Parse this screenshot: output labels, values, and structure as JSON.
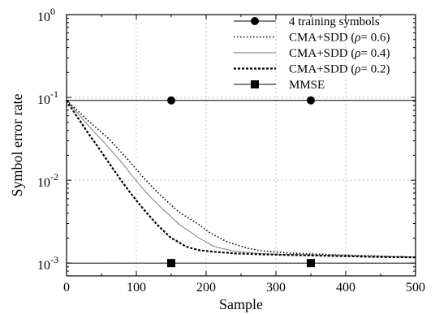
{
  "chart_data": {
    "type": "line",
    "title": "",
    "xlabel": "Sample",
    "ylabel": "Symbol error rate",
    "xlim": [
      0,
      500
    ],
    "ylim": [
      0.0007,
      1
    ],
    "yscale": "log",
    "x_ticks": [
      0,
      100,
      200,
      300,
      400,
      500
    ],
    "x_tick_labels": [
      "0",
      "100",
      "200",
      "300",
      "400",
      "500"
    ],
    "y_ticks": [
      1,
      0.1,
      0.01,
      0.001
    ],
    "y_tick_labels": [
      {
        "base": "10",
        "exp": "0"
      },
      {
        "base": "10",
        "exp": "-1"
      },
      {
        "base": "10",
        "exp": "-2"
      },
      {
        "base": "10",
        "exp": "-3"
      }
    ],
    "grid": true,
    "legend_position": "top-right",
    "series": [
      {
        "name": "4 training symbols",
        "style": "solid-circle",
        "color": "#000000",
        "x": [
          0,
          500
        ],
        "y": [
          0.092,
          0.092
        ],
        "marker_x": [
          150,
          350
        ]
      },
      {
        "name_prefix": "CMA+SDD (",
        "name_symbol": "ρ",
        "name_suffix": "= 0.6)",
        "style": "dotted",
        "color": "#000000",
        "x": [
          0,
          10,
          20,
          30,
          40,
          50,
          60,
          70,
          80,
          90,
          100,
          110,
          120,
          130,
          140,
          150,
          160,
          170,
          180,
          190,
          200,
          210,
          220,
          230,
          240,
          250,
          260,
          270,
          280,
          290,
          300,
          320,
          340,
          360,
          380,
          400,
          420,
          440,
          460,
          480,
          500
        ],
        "y": [
          0.092,
          0.077,
          0.064,
          0.053,
          0.045,
          0.038,
          0.032,
          0.026,
          0.021,
          0.017,
          0.0135,
          0.0108,
          0.0088,
          0.0072,
          0.006,
          0.005,
          0.0042,
          0.0037,
          0.0033,
          0.0029,
          0.0025,
          0.0022,
          0.002,
          0.0018,
          0.0017,
          0.0016,
          0.0015,
          0.00145,
          0.0014,
          0.00138,
          0.00136,
          0.00132,
          0.0013,
          0.00128,
          0.00126,
          0.00125,
          0.00123,
          0.00122,
          0.0012,
          0.00119,
          0.00118
        ]
      },
      {
        "name_prefix": "CMA+SDD (",
        "name_symbol": "ρ",
        "name_suffix": "= 0.4)",
        "style": "thin",
        "color": "#707070",
        "x": [
          0,
          10,
          20,
          30,
          40,
          50,
          60,
          70,
          80,
          90,
          100,
          110,
          120,
          130,
          140,
          150,
          160,
          170,
          180,
          190,
          200,
          210,
          220,
          230,
          240,
          250,
          260,
          270,
          280,
          290,
          300,
          320,
          340,
          360,
          380,
          400,
          420,
          440,
          460,
          480,
          500
        ],
        "y": [
          0.092,
          0.074,
          0.059,
          0.047,
          0.038,
          0.031,
          0.025,
          0.02,
          0.016,
          0.0125,
          0.0098,
          0.0078,
          0.0063,
          0.0052,
          0.0043,
          0.0036,
          0.003,
          0.0026,
          0.0023,
          0.002,
          0.0018,
          0.0016,
          0.00152,
          0.00145,
          0.0014,
          0.00137,
          0.00134,
          0.00132,
          0.0013,
          0.00129,
          0.00128,
          0.00127,
          0.00126,
          0.00125,
          0.00124,
          0.00123,
          0.00122,
          0.00121,
          0.0012,
          0.00119,
          0.00118
        ]
      },
      {
        "name_prefix": "CMA+SDD (",
        "name_symbol": "ρ",
        "name_suffix": "= 0.2)",
        "style": "bold-dashed",
        "color": "#000000",
        "x": [
          0,
          10,
          20,
          30,
          40,
          50,
          60,
          70,
          80,
          90,
          100,
          110,
          120,
          130,
          140,
          150,
          160,
          170,
          180,
          190,
          200,
          210,
          220,
          230,
          240,
          250,
          260,
          270,
          280,
          290,
          300,
          320,
          340,
          360,
          380,
          400,
          420,
          440,
          460,
          480,
          500
        ],
        "y": [
          0.092,
          0.068,
          0.051,
          0.038,
          0.029,
          0.022,
          0.0165,
          0.0125,
          0.0095,
          0.0073,
          0.0057,
          0.0045,
          0.0036,
          0.0029,
          0.0024,
          0.002,
          0.0018,
          0.0016,
          0.0015,
          0.00143,
          0.0014,
          0.00137,
          0.00135,
          0.00133,
          0.00131,
          0.0013,
          0.00129,
          0.00128,
          0.00127,
          0.00127,
          0.00126,
          0.00125,
          0.00124,
          0.00123,
          0.00122,
          0.00121,
          0.0012,
          0.00119,
          0.00118,
          0.00118,
          0.00117
        ]
      },
      {
        "name": "MMSE",
        "style": "solid-square",
        "color": "#000000",
        "x": [
          0,
          500
        ],
        "y": [
          0.001,
          0.001
        ],
        "marker_x": [
          150,
          350
        ]
      }
    ]
  }
}
